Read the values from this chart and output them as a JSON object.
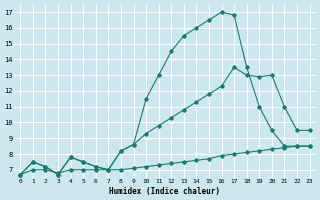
{
  "xlabel": "Humidex (Indice chaleur)",
  "bg_color": "#cce8ee",
  "grid_color": "#ffffff",
  "line_color": "#1a7a6e",
  "xlim": [
    -0.5,
    23.5
  ],
  "ylim": [
    6.5,
    17.5
  ],
  "xticks": [
    0,
    1,
    2,
    3,
    4,
    5,
    6,
    7,
    8,
    9,
    10,
    11,
    12,
    13,
    14,
    15,
    16,
    17,
    18,
    19,
    20,
    21,
    22,
    23
  ],
  "yticks": [
    7,
    8,
    9,
    10,
    11,
    12,
    13,
    14,
    15,
    16,
    17
  ],
  "line1_x": [
    0,
    1,
    2,
    3,
    4,
    5,
    6,
    7,
    8,
    9,
    10,
    11,
    12,
    13,
    14,
    15,
    16,
    17,
    18,
    19,
    20,
    21,
    22,
    23
  ],
  "line1_y": [
    6.7,
    7.5,
    7.2,
    6.7,
    7.8,
    7.5,
    7.2,
    7.0,
    8.2,
    8.6,
    11.5,
    13.0,
    14.5,
    15.5,
    16.0,
    16.5,
    17.0,
    16.8,
    13.5,
    11.0,
    9.5,
    8.5,
    8.5,
    8.5
  ],
  "line2_x": [
    0,
    1,
    2,
    3,
    4,
    5,
    6,
    7,
    8,
    9,
    10,
    11,
    12,
    13,
    14,
    15,
    16,
    17,
    18,
    19,
    20,
    21,
    22,
    23
  ],
  "line2_y": [
    6.7,
    7.5,
    7.2,
    6.7,
    7.8,
    7.5,
    7.2,
    7.0,
    8.2,
    8.6,
    9.3,
    9.8,
    10.3,
    10.8,
    11.3,
    11.8,
    12.3,
    13.5,
    13.0,
    12.9,
    13.0,
    11.0,
    9.5,
    9.5
  ],
  "line3_x": [
    0,
    1,
    2,
    3,
    4,
    5,
    6,
    7,
    8,
    9,
    10,
    11,
    12,
    13,
    14,
    15,
    16,
    17,
    18,
    19,
    20,
    21,
    22,
    23
  ],
  "line3_y": [
    6.7,
    7.0,
    7.0,
    6.8,
    7.0,
    7.0,
    7.0,
    7.0,
    7.0,
    7.1,
    7.2,
    7.3,
    7.4,
    7.5,
    7.6,
    7.7,
    7.9,
    8.0,
    8.1,
    8.2,
    8.3,
    8.4,
    8.5,
    8.5
  ]
}
